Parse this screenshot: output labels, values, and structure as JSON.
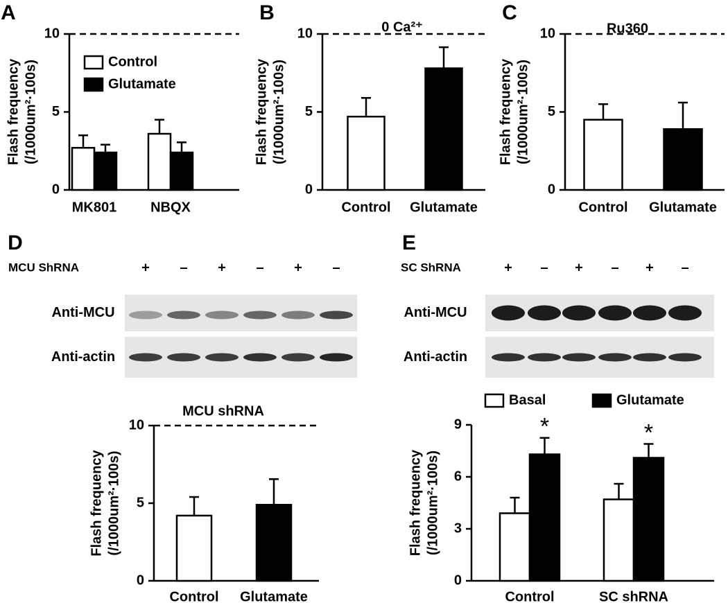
{
  "chart_data": [
    {
      "type": "bar",
      "panel": "A",
      "ylabel": [
        "Flash frequency",
        "(/1000um²·100s)"
      ],
      "categories": [
        "MK801",
        "NBQX"
      ],
      "series": [
        {
          "name": "Control",
          "color": "#ffffff",
          "values": [
            2.7,
            3.6
          ],
          "errors": [
            0.8,
            0.9
          ]
        },
        {
          "name": "Glutamate",
          "color": "#000000",
          "values": [
            2.4,
            2.4
          ],
          "errors": [
            0.5,
            0.65
          ]
        }
      ],
      "ylim": [
        0,
        10
      ],
      "yticks": [
        0,
        5,
        10
      ],
      "ref_line": 10,
      "legend": "upper left"
    },
    {
      "type": "bar",
      "panel": "B",
      "title": "0 Ca²⁺",
      "ylabel": [
        "Flash frequency",
        "(/1000um²·100s)"
      ],
      "categories": [
        "Control",
        "Glutamate"
      ],
      "values": [
        4.7,
        7.8
      ],
      "errors": [
        1.2,
        1.35
      ],
      "colors": [
        "#ffffff",
        "#000000"
      ],
      "ylim": [
        0,
        10
      ],
      "yticks": [
        0,
        5,
        10
      ],
      "ref_line": 10
    },
    {
      "type": "bar",
      "panel": "C",
      "title": "Ru360",
      "ylabel": [
        "Flash frequency",
        "(/1000um²·100s)"
      ],
      "categories": [
        "Control",
        "Glutamate"
      ],
      "values": [
        4.5,
        3.9
      ],
      "errors": [
        1.0,
        1.7
      ],
      "colors": [
        "#ffffff",
        "#000000"
      ],
      "ylim": [
        0,
        10
      ],
      "yticks": [
        0,
        5,
        10
      ],
      "ref_line": 10
    },
    {
      "type": "bar",
      "title": "MCU shRNA",
      "ylabel": [
        "Flash frequency",
        "(/1000um²·100s)"
      ],
      "categories": [
        "Control",
        "Glutamate"
      ],
      "values": [
        4.2,
        4.9
      ],
      "errors": [
        1.2,
        1.65
      ],
      "colors": [
        "#ffffff",
        "#000000"
      ],
      "ylim": [
        0,
        10
      ],
      "yticks": [
        0,
        5,
        10
      ],
      "ref_line": 10
    },
    {
      "type": "bar",
      "ylabel": [
        "Flash frequency",
        "(/1000um²·100s)"
      ],
      "categories": [
        "Control",
        "SC shRNA"
      ],
      "series": [
        {
          "name": "Basal",
          "color": "#ffffff",
          "values": [
            3.9,
            4.7
          ],
          "errors": [
            0.9,
            0.9
          ]
        },
        {
          "name": "Glutamate",
          "color": "#000000",
          "values": [
            7.3,
            7.1
          ],
          "errors": [
            0.95,
            0.8
          ],
          "markers": [
            "*",
            "*"
          ]
        }
      ],
      "ylim": [
        0,
        9
      ],
      "yticks": [
        0,
        3,
        6,
        9
      ],
      "legend": "top"
    }
  ],
  "blots": [
    {
      "panel": "D",
      "header": "MCU ShRNA",
      "signs": [
        "+",
        "–",
        "+",
        "–",
        "+",
        "–"
      ],
      "rows": [
        "Anti-MCU",
        "Anti-actin"
      ]
    },
    {
      "panel": "E",
      "header": "SC ShRNA",
      "signs": [
        "+",
        "–",
        "+",
        "–",
        "+",
        "–"
      ],
      "rows": [
        "Anti-MCU",
        "Anti-actin"
      ]
    }
  ]
}
